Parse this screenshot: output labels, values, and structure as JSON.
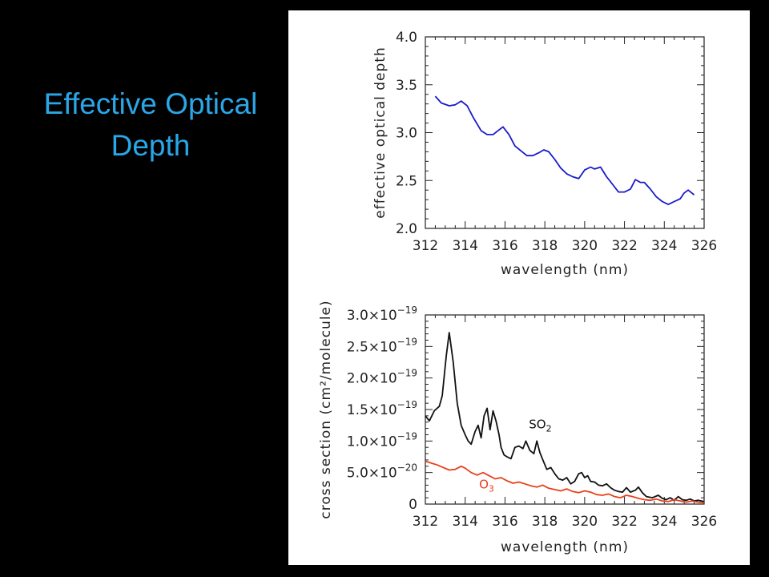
{
  "slide": {
    "title_line1": "Effective Optical",
    "title_line2": "Depth",
    "title_color": "#2aa7e8",
    "background": "#000000"
  },
  "chart_data": [
    {
      "type": "line",
      "xlabel": "wavelength (nm)",
      "ylabel": "effective optical depth",
      "xlim": [
        312,
        326
      ],
      "ylim": [
        2.0,
        4.0
      ],
      "x_ticks": [
        312,
        314,
        316,
        318,
        320,
        322,
        324,
        326
      ],
      "x_tick_labels": [
        "312",
        "314",
        "316",
        "318",
        "320",
        "322",
        "324",
        "326"
      ],
      "y_ticks": [
        2.0,
        2.5,
        3.0,
        3.5,
        4.0
      ],
      "y_tick_labels": [
        "2.0",
        "2.5",
        "3.0",
        "3.5",
        "4.0"
      ],
      "grid": false,
      "series": [
        {
          "color": "#1a1acc",
          "x": [
            312.5,
            312.8,
            313.2,
            313.5,
            313.8,
            314.1,
            314.4,
            314.8,
            315.1,
            315.4,
            315.65,
            315.9,
            316.2,
            316.5,
            316.8,
            317.1,
            317.4,
            317.7,
            317.95,
            318.2,
            318.5,
            318.8,
            319.1,
            319.4,
            319.7,
            320.0,
            320.3,
            320.5,
            320.8,
            321.1,
            321.4,
            321.7,
            322.0,
            322.3,
            322.55,
            322.8,
            323.0,
            323.3,
            323.6,
            323.9,
            324.2,
            324.5,
            324.8,
            325.0,
            325.2,
            325.5
          ],
          "y": [
            3.38,
            3.31,
            3.28,
            3.29,
            3.33,
            3.28,
            3.16,
            3.02,
            2.98,
            2.98,
            3.02,
            3.06,
            2.98,
            2.86,
            2.81,
            2.76,
            2.76,
            2.79,
            2.82,
            2.8,
            2.72,
            2.63,
            2.57,
            2.54,
            2.52,
            2.61,
            2.64,
            2.62,
            2.64,
            2.54,
            2.46,
            2.38,
            2.38,
            2.41,
            2.51,
            2.48,
            2.48,
            2.41,
            2.33,
            2.28,
            2.25,
            2.28,
            2.31,
            2.37,
            2.4,
            2.35
          ]
        }
      ]
    },
    {
      "type": "line",
      "xlabel": "wavelength (nm)",
      "ylabel": "cross section (cm²/molecule)",
      "xlim": [
        312,
        326
      ],
      "ylim": [
        0,
        3e-19
      ],
      "x_ticks": [
        312,
        314,
        316,
        318,
        320,
        322,
        324,
        326
      ],
      "x_tick_labels": [
        "312",
        "314",
        "316",
        "318",
        "320",
        "322",
        "324",
        "326"
      ],
      "y_ticks": [
        0,
        5e-20,
        1e-19,
        1.5e-19,
        2e-19,
        2.5e-19,
        3e-19
      ],
      "y_tick_labels": [
        {
          "mant": "0",
          "exp": ""
        },
        {
          "mant": "5.0×10",
          "exp": "−20"
        },
        {
          "mant": "1.0×10",
          "exp": "−19"
        },
        {
          "mant": "1.5×10",
          "exp": "−19"
        },
        {
          "mant": "2.0×10",
          "exp": "−19"
        },
        {
          "mant": "2.5×10",
          "exp": "−19"
        },
        {
          "mant": "3.0×10",
          "exp": "−19"
        }
      ],
      "grid": false,
      "series": [
        {
          "name": "SO₂",
          "color": "#111111",
          "x": [
            312.0,
            312.2,
            312.45,
            312.7,
            312.85,
            313.05,
            313.2,
            313.4,
            313.6,
            313.8,
            314.0,
            314.15,
            314.3,
            314.5,
            314.65,
            314.8,
            314.95,
            315.1,
            315.25,
            315.4,
            315.55,
            315.7,
            315.8,
            315.95,
            316.1,
            316.3,
            316.5,
            316.7,
            316.9,
            317.05,
            317.25,
            317.45,
            317.6,
            317.75,
            317.9,
            318.1,
            318.3,
            318.5,
            318.7,
            318.9,
            319.1,
            319.3,
            319.5,
            319.7,
            319.85,
            320.0,
            320.15,
            320.3,
            320.5,
            320.7,
            320.9,
            321.1,
            321.3,
            321.5,
            321.7,
            321.9,
            322.1,
            322.3,
            322.55,
            322.7,
            322.9,
            323.1,
            323.4,
            323.7,
            323.9,
            324.1,
            324.3,
            324.5,
            324.7,
            324.9,
            325.1,
            325.3,
            325.5,
            325.7,
            326.0
          ],
          "y": [
            1.4e-19,
            1.32e-19,
            1.48e-19,
            1.55e-19,
            1.72e-19,
            2.35e-19,
            2.72e-19,
            2.25e-19,
            1.6e-19,
            1.25e-19,
            1.1e-19,
            1e-19,
            9.5e-20,
            1.15e-19,
            1.25e-19,
            1.05e-19,
            1.4e-19,
            1.52e-19,
            1.18e-19,
            1.48e-19,
            1.32e-19,
            1.1e-19,
            9e-20,
            7.8e-20,
            7.5e-20,
            7.2e-20,
            9e-20,
            9.2e-20,
            8.8e-20,
            1e-19,
            8.5e-20,
            8e-20,
            1e-19,
            8.2e-20,
            7e-20,
            5.5e-20,
            5.8e-20,
            4.8e-20,
            4e-20,
            3.8e-20,
            4.2e-20,
            3.2e-20,
            3.6e-20,
            4.8e-20,
            5e-20,
            4.2e-20,
            4.5e-20,
            3.6e-20,
            3.5e-20,
            3e-20,
            2.9e-20,
            3.2e-20,
            2.6e-20,
            2.2e-20,
            2e-20,
            1.9e-20,
            2.6e-20,
            1.9e-20,
            2.2e-20,
            2.7e-20,
            1.8e-20,
            1.2e-20,
            1e-20,
            1.4e-20,
            9e-21,
            7e-21,
            1e-20,
            6e-21,
            1.2e-20,
            7e-21,
            6e-21,
            8e-21,
            5e-21,
            6e-21,
            4e-21
          ]
        },
        {
          "name": "O₃",
          "color": "#e8401a",
          "x": [
            312.0,
            312.3,
            312.6,
            312.9,
            313.2,
            313.5,
            313.8,
            314.0,
            314.3,
            314.6,
            314.9,
            315.2,
            315.5,
            315.8,
            316.1,
            316.4,
            316.7,
            317.0,
            317.3,
            317.6,
            317.9,
            318.2,
            318.5,
            318.8,
            319.1,
            319.4,
            319.7,
            320.0,
            320.3,
            320.6,
            320.9,
            321.2,
            321.5,
            321.8,
            322.1,
            322.4,
            322.7,
            323.0,
            323.3,
            323.6,
            323.9,
            324.2,
            324.5,
            324.8,
            325.1,
            325.4,
            325.7,
            326.0
          ],
          "y": [
            6.8e-20,
            6.5e-20,
            6.2e-20,
            5.8e-20,
            5.4e-20,
            5.5e-20,
            6e-20,
            5.7e-20,
            5e-20,
            4.6e-20,
            5e-20,
            4.5e-20,
            4e-20,
            4.2e-20,
            3.7e-20,
            3.3e-20,
            3.5e-20,
            3.2e-20,
            2.9e-20,
            2.7e-20,
            3e-20,
            2.5e-20,
            2.3e-20,
            2.1e-20,
            2.4e-20,
            2e-20,
            1.8e-20,
            2.1e-20,
            1.9e-20,
            1.5e-20,
            1.4e-20,
            1.6e-20,
            1.2e-20,
            1e-20,
            1.4e-20,
            1.2e-20,
            9e-21,
            7e-21,
            6e-21,
            8e-21,
            5e-21,
            4e-21,
            7e-21,
            5e-21,
            3e-21,
            5e-21,
            3e-21,
            2e-21
          ]
        }
      ],
      "annotations": [
        {
          "text": "SO",
          "sub": "2",
          "x": 317.2,
          "y": 1.2e-19,
          "color": "#111111"
        },
        {
          "text": "O",
          "sub": "3",
          "x": 314.7,
          "y": 2.5e-20,
          "color": "#e8401a"
        }
      ]
    }
  ]
}
